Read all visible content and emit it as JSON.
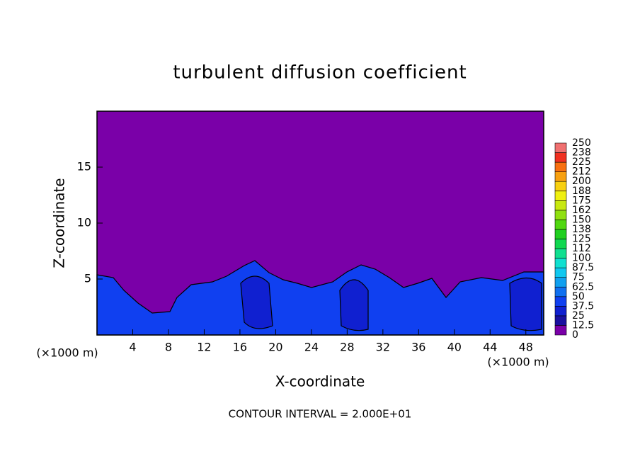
{
  "chart_data": {
    "type": "contour",
    "title": "turbulent diffusion coefficient",
    "x_label": "X-coordinate",
    "y_label": "Z-coordinate",
    "x_unit": "(×1000 m)",
    "y_unit": "(×1000 m)",
    "footer": "CONTOUR INTERVAL = 2.000E+01",
    "xlim": [
      0,
      50
    ],
    "xticks": [
      4,
      8,
      12,
      16,
      20,
      24,
      28,
      32,
      36,
      40,
      44,
      48
    ],
    "ylim": [
      0,
      20
    ],
    "yticks": [
      5,
      10,
      15
    ],
    "colorbar": {
      "levels": [
        0,
        12.5,
        25,
        37.5,
        50,
        62.5,
        75,
        87.5,
        100,
        112,
        125,
        138,
        150,
        162,
        175,
        188,
        200,
        212,
        225,
        238,
        250
      ],
      "colors": [
        "#7a00a8",
        "#1a10a0",
        "#1020d0",
        "#1040f0",
        "#1070f0",
        "#10a0f0",
        "#10c8f0",
        "#10e0d0",
        "#10e090",
        "#10d850",
        "#20d020",
        "#50d810",
        "#90e010",
        "#c8e810",
        "#f0f010",
        "#f8d010",
        "#f8a010",
        "#f87010",
        "#f03020",
        "#f07070"
      ]
    }
  }
}
